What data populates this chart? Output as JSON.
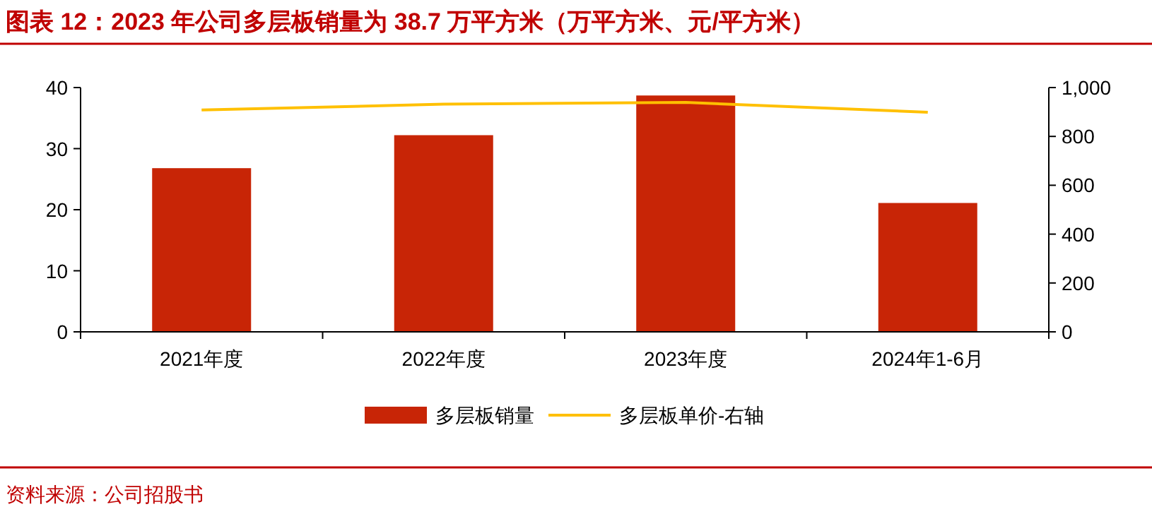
{
  "chart_data": {
    "type": "bar",
    "title": "图表 12：2023 年公司多层板销量为 38.7 万平方米（万平方米、元/平方米）",
    "categories": [
      "2021年度",
      "2022年度",
      "2023年度",
      "2024年1-6月"
    ],
    "series": [
      {
        "name": "多层板销量",
        "color": "#c82506",
        "values": [
          26.8,
          32.2,
          38.7,
          21.1
        ]
      },
      {
        "name": "多层板单价-右轴",
        "type": "line",
        "axis": "y2",
        "color": "#ffc000",
        "values": [
          908,
          932,
          939,
          899
        ]
      }
    ],
    "ylim": [
      0,
      40
    ],
    "yticks": [
      0,
      10,
      20,
      30,
      40
    ],
    "y2lim": [
      0,
      1000
    ],
    "y2ticks": [
      0,
      200,
      400,
      600,
      800,
      {
        "value": 1000,
        "label": "1,000"
      }
    ],
    "legend": "bottom",
    "marker": "none",
    "annotations": [
      "资料来源：公司招股书"
    ]
  }
}
